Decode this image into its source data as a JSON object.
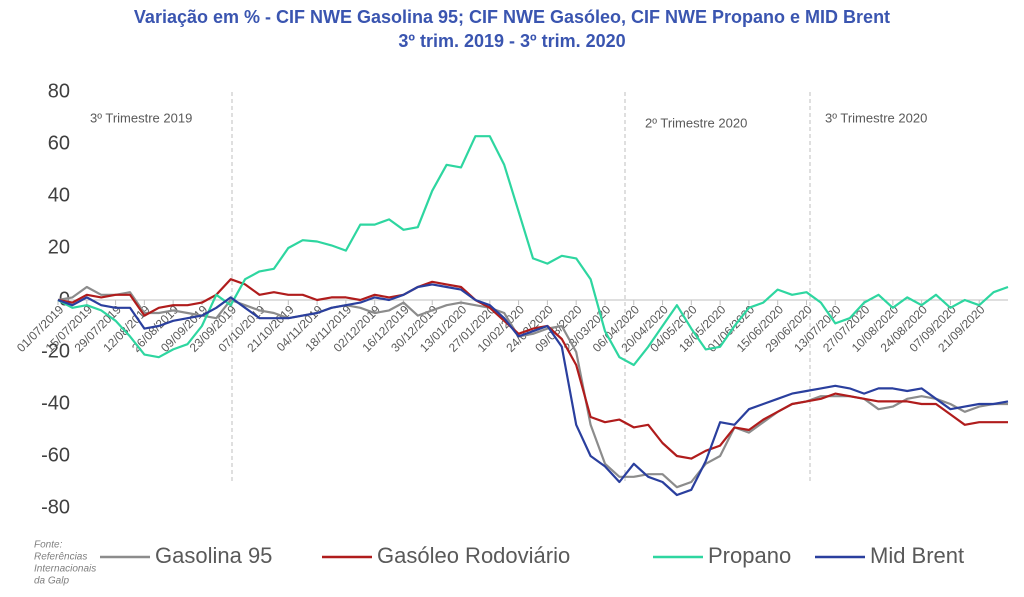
{
  "chart_data": {
    "type": "line",
    "title": "Variação em % - CIF NWE Gasolina 95; CIF NWE Gasóleo, CIF NWE Propano e MID Brent",
    "subtitle": "3º trim. 2019 - 3º trim. 2020",
    "annotations": [
      "3º Trimestre 2019",
      "2º Trimestre 2020",
      "3º Trimestre 2020"
    ],
    "source": [
      "Fonte:",
      "Referências",
      "Internacionais",
      "da Galp"
    ],
    "categories": [
      "01/07/2019",
      null,
      "15/07/2019",
      null,
      "29/07/2019",
      null,
      "12/08/2019",
      null,
      "26/08/2019",
      null,
      "09/09/2019",
      null,
      "23/09/2019",
      null,
      "07/10/2019",
      null,
      "21/10/2019",
      null,
      "04/11/2019",
      null,
      "18/11/2019",
      null,
      "02/12/2019",
      null,
      "16/12/2019",
      null,
      "30/12/2019",
      null,
      "13/01/2020",
      null,
      "27/01/2020",
      null,
      "10/02/2020",
      null,
      "24/02/2020",
      null,
      "09/03/2020",
      null,
      "23/03/2020",
      null,
      "06/04/2020",
      null,
      "20/04/2020",
      null,
      "04/05/2020",
      null,
      "18/05/2020",
      null,
      "01/06/2020",
      null,
      "15/06/2020",
      null,
      "29/06/2020",
      null,
      "13/07/2020",
      null,
      "27/07/2020",
      null,
      "10/08/2020",
      null,
      "24/08/2020",
      null,
      "07/09/2020",
      null,
      "21/09/2020",
      null,
      null
    ],
    "series": [
      {
        "name": "Gasolina 95",
        "color": "#8c8c8c",
        "values": [
          0,
          1,
          5,
          2,
          2,
          3,
          -5,
          -5,
          -4,
          -5,
          -6,
          -7,
          0,
          -2,
          -4,
          -5,
          -7,
          -6,
          -5,
          -3,
          -2,
          -3,
          -5,
          -4,
          -1,
          -6,
          -4,
          -2,
          -1,
          -2,
          -3,
          -5,
          -14,
          -13,
          -11,
          -10,
          -20,
          -48,
          -63,
          -68,
          -68,
          -67,
          -67,
          -72,
          -70,
          -63,
          -60,
          -49,
          -51,
          -47,
          -43,
          -40,
          -39,
          -37,
          -37,
          -37,
          -38,
          -42,
          -41,
          -38,
          -37,
          -38,
          -40,
          -43,
          -41,
          -40,
          -40
        ]
      },
      {
        "name": "Gasóleo Rodoviário",
        "color": "#b01c1c",
        "values": [
          0,
          -1,
          2,
          1,
          2,
          2,
          -6,
          -3,
          -2,
          -2,
          -1,
          2,
          8,
          6,
          2,
          3,
          2,
          2,
          0,
          1,
          1,
          0,
          2,
          1,
          2,
          5,
          7,
          6,
          5,
          0,
          -3,
          -8,
          -13,
          -11,
          -10,
          -15,
          -25,
          -45,
          -47,
          -46,
          -49,
          -48,
          -55,
          -60,
          -61,
          -58,
          -56,
          -49,
          -50,
          -46,
          -43,
          -40,
          -39,
          -38,
          -36,
          -37,
          -38,
          -39,
          -39,
          -39,
          -40,
          -40,
          -44,
          -48,
          -47,
          -47,
          -47
        ]
      },
      {
        "name": "Propano",
        "color": "#2ed6a0",
        "values": [
          0,
          -3,
          -2,
          -4,
          -8,
          -14,
          -21,
          -22,
          -19,
          -17,
          -10,
          2,
          -2,
          8,
          11,
          12,
          20,
          23,
          22.5,
          21,
          19,
          29,
          29,
          31,
          27,
          28,
          42,
          52,
          51,
          63,
          63,
          52,
          34,
          16,
          14,
          17,
          16,
          8,
          -12,
          -22,
          -25,
          -18,
          -10,
          -2,
          -11,
          -19,
          -18,
          -10,
          -3,
          -1,
          4,
          2,
          3,
          -1,
          -9,
          -7,
          -1,
          2,
          -3,
          1,
          -2,
          2,
          -3,
          0,
          -2,
          3,
          5
        ]
      },
      {
        "name": "Mid Brent",
        "color": "#2a3f9e",
        "values": [
          0,
          -2,
          1,
          -2,
          -3,
          -3,
          -11,
          -10,
          -8,
          -7,
          -6,
          -3,
          1,
          -3,
          -7,
          -7,
          -7,
          -6,
          -5,
          -3,
          -2,
          -1,
          1,
          0,
          2,
          5,
          6,
          5,
          4,
          0,
          -2,
          -7,
          -14,
          -12,
          -10,
          -18,
          -48,
          -60,
          -64,
          -70,
          -63,
          -68,
          -70,
          -75,
          -73,
          -62,
          -47,
          -48,
          -42,
          -40,
          -38,
          -36,
          -35,
          -34,
          -33,
          -34,
          -36,
          -34,
          -34,
          -35,
          -34,
          -38,
          -42,
          -41,
          -40,
          -40,
          -39
        ]
      }
    ],
    "ylim": [
      -80,
      80
    ],
    "yticks": [
      -80,
      -60,
      -40,
      -20,
      0,
      20,
      40,
      60,
      80
    ],
    "grid": false,
    "legend": "bottom"
  }
}
